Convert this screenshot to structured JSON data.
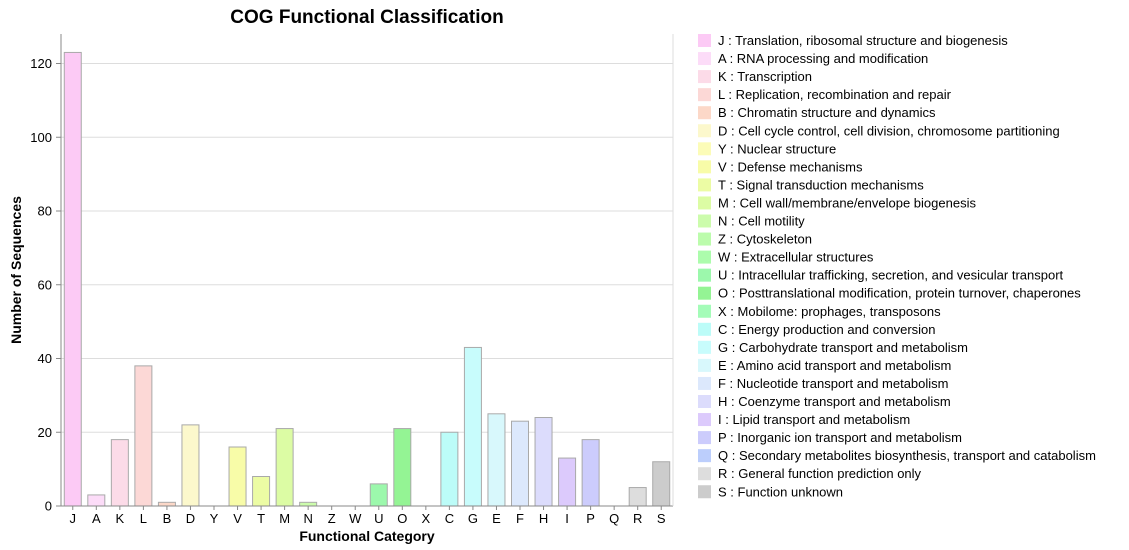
{
  "chart_data": {
    "type": "bar",
    "title": "COG Functional Classification",
    "xlabel": "Functional Category",
    "ylabel": "Number of Sequences",
    "ylim": [
      0,
      128
    ],
    "yticks": [
      0,
      20,
      40,
      60,
      80,
      100,
      120
    ],
    "grid": true,
    "legend_position": "right",
    "categories": [
      "J",
      "A",
      "K",
      "L",
      "B",
      "D",
      "Y",
      "V",
      "T",
      "M",
      "N",
      "Z",
      "W",
      "U",
      "O",
      "X",
      "C",
      "G",
      "E",
      "F",
      "H",
      "I",
      "P",
      "Q",
      "R",
      "S"
    ],
    "values": [
      123,
      3,
      18,
      38,
      1,
      22,
      0,
      16,
      8,
      21,
      1,
      0,
      0,
      6,
      21,
      0,
      20,
      43,
      25,
      23,
      24,
      13,
      18,
      0,
      5,
      12
    ],
    "colors": [
      "#fccaf5",
      "#fcdcf8",
      "#fcdbe8",
      "#fcd8d6",
      "#fcd8c8",
      "#fcf8cc",
      "#fcfcb8",
      "#f8fca8",
      "#ecfca4",
      "#dcfca4",
      "#ccfcac",
      "#bcfcac",
      "#acfcac",
      "#9cf8ac",
      "#94f494",
      "#a4fcb8",
      "#bcfcf8",
      "#c8fcfc",
      "#d8f8fc",
      "#dce8fc",
      "#dcdcfc",
      "#dccafc",
      "#ccccfc",
      "#bccefc",
      "#dddddd",
      "#cccccc"
    ],
    "legend": [
      "J : Translation, ribosomal structure and biogenesis",
      "A : RNA processing and modification",
      "K : Transcription",
      "L : Replication, recombination and repair",
      "B : Chromatin structure and dynamics",
      "D : Cell cycle control, cell division, chromosome partitioning",
      "Y : Nuclear structure",
      "V : Defense mechanisms",
      "T : Signal transduction mechanisms",
      "M : Cell wall/membrane/envelope biogenesis",
      "N : Cell motility",
      "Z : Cytoskeleton",
      "W : Extracellular structures",
      "U : Intracellular trafficking, secretion, and vesicular transport",
      "O : Posttranslational modification, protein turnover, chaperones",
      "X : Mobilome: prophages, transposons",
      "C : Energy production and conversion",
      "G : Carbohydrate transport and metabolism",
      "E : Amino acid transport and metabolism",
      "F : Nucleotide transport and metabolism",
      "H : Coenzyme transport and metabolism",
      "I : Lipid transport and metabolism",
      "P : Inorganic ion transport and metabolism",
      "Q : Secondary metabolites biosynthesis, transport and catabolism",
      "R : General function prediction only",
      "S : Function unknown"
    ]
  }
}
